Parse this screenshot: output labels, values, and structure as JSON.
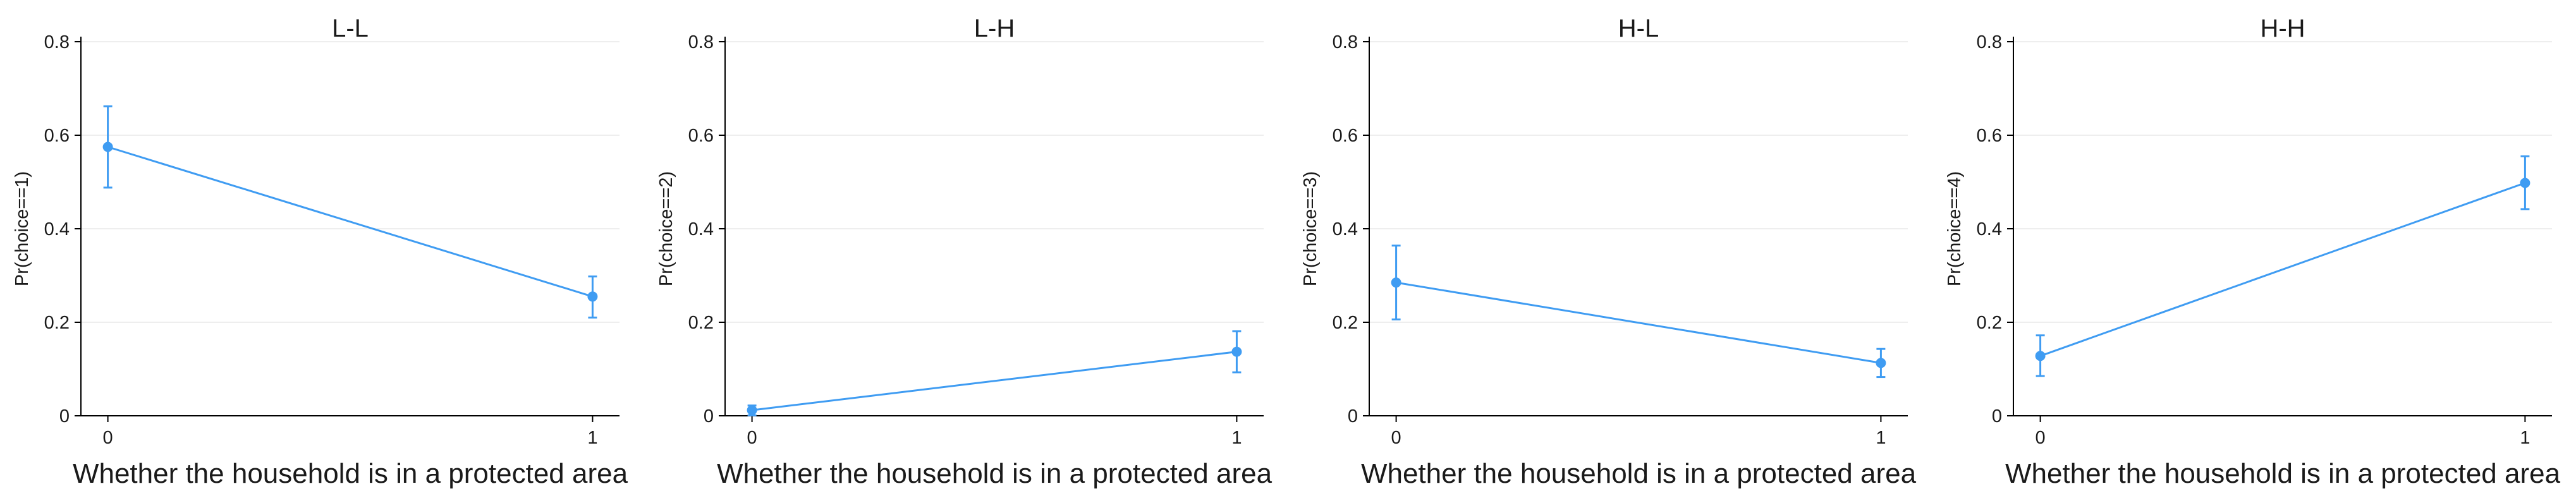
{
  "chart_data": [
    {
      "type": "line",
      "title": "L-L",
      "xlabel": "Whether the household is in a protected area",
      "ylabel": "Pr(choice==1)",
      "x": [
        0,
        1
      ],
      "values": [
        0.575,
        0.255
      ],
      "ci_low": [
        0.488,
        0.21
      ],
      "ci_high": [
        0.662,
        0.298
      ],
      "ylim": [
        0,
        0.8
      ],
      "yticks": [
        0,
        0.2,
        0.4,
        0.6,
        0.8
      ],
      "xticks": [
        0,
        1
      ],
      "grid": true,
      "color": "#3f9cf2"
    },
    {
      "type": "line",
      "title": "L-H",
      "xlabel": "Whether the household is in a protected area",
      "ylabel": "Pr(choice==2)",
      "x": [
        0,
        1
      ],
      "values": [
        0.012,
        0.137
      ],
      "ci_low": [
        0.001,
        0.093
      ],
      "ci_high": [
        0.022,
        0.181
      ],
      "ylim": [
        0,
        0.8
      ],
      "yticks": [
        0,
        0.2,
        0.4,
        0.6,
        0.8
      ],
      "xticks": [
        0,
        1
      ],
      "grid": true,
      "color": "#3f9cf2"
    },
    {
      "type": "line",
      "title": "H-L",
      "xlabel": "Whether the household is in a protected area",
      "ylabel": "Pr(choice==3)",
      "x": [
        0,
        1
      ],
      "values": [
        0.285,
        0.113
      ],
      "ci_low": [
        0.206,
        0.083
      ],
      "ci_high": [
        0.364,
        0.143
      ],
      "ylim": [
        0,
        0.8
      ],
      "yticks": [
        0,
        0.2,
        0.4,
        0.6,
        0.8
      ],
      "xticks": [
        0,
        1
      ],
      "grid": true,
      "color": "#3f9cf2"
    },
    {
      "type": "line",
      "title": "H-H",
      "xlabel": "Whether the household is in a protected area",
      "ylabel": "Pr(choice==4)",
      "x": [
        0,
        1
      ],
      "values": [
        0.128,
        0.498
      ],
      "ci_low": [
        0.085,
        0.442
      ],
      "ci_high": [
        0.172,
        0.555
      ],
      "ylim": [
        0,
        0.8
      ],
      "yticks": [
        0,
        0.2,
        0.4,
        0.6,
        0.8
      ],
      "xticks": [
        0,
        1
      ],
      "grid": true,
      "color": "#3f9cf2"
    }
  ]
}
